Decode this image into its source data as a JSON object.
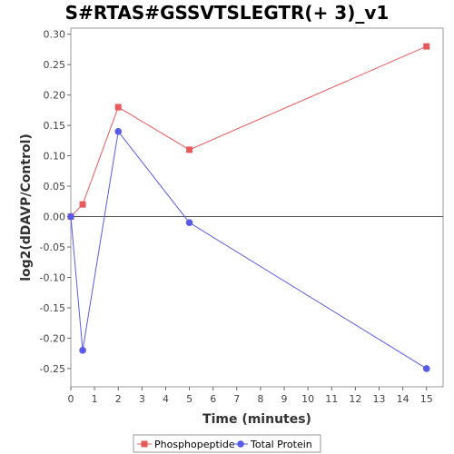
{
  "chart_data": {
    "type": "line",
    "title": "S#RTAS#GSSVTSLEGTR(+ 3)_v1",
    "xlabel": "Time (minutes)",
    "ylabel": "log2(dDAVP/Control)",
    "xlim": [
      0,
      15.7
    ],
    "ylim": [
      -0.28,
      0.31
    ],
    "xticks": [
      0,
      1,
      2,
      3,
      4,
      5,
      6,
      7,
      8,
      9,
      10,
      11,
      12,
      13,
      14,
      15
    ],
    "yticks": [
      0.3,
      0.25,
      0.2,
      0.15,
      0.1,
      0.05,
      0.0,
      -0.05,
      -0.1,
      -0.15,
      -0.2,
      -0.25
    ],
    "ytick_labels": [
      "0.30",
      "0.25",
      "0.20",
      "0.15",
      "0.10",
      "0.05",
      "0.00",
      "-0.05",
      "-0.10",
      "-0.15",
      "-0.20",
      "-0.25"
    ],
    "zero_line": true,
    "grid": false,
    "legend_position": "bottom",
    "series": [
      {
        "name": "Phosphopeptide",
        "color": "#e8595a",
        "marker": "square",
        "x": [
          0,
          0.5,
          2,
          5,
          15
        ],
        "y": [
          0.0,
          0.02,
          0.18,
          0.11,
          0.28
        ]
      },
      {
        "name": "Total Protein",
        "color": "#5a5ae8",
        "marker": "circle",
        "x": [
          0,
          0.5,
          2,
          5,
          15
        ],
        "y": [
          0.0,
          -0.22,
          0.14,
          -0.01,
          -0.25
        ]
      }
    ]
  }
}
